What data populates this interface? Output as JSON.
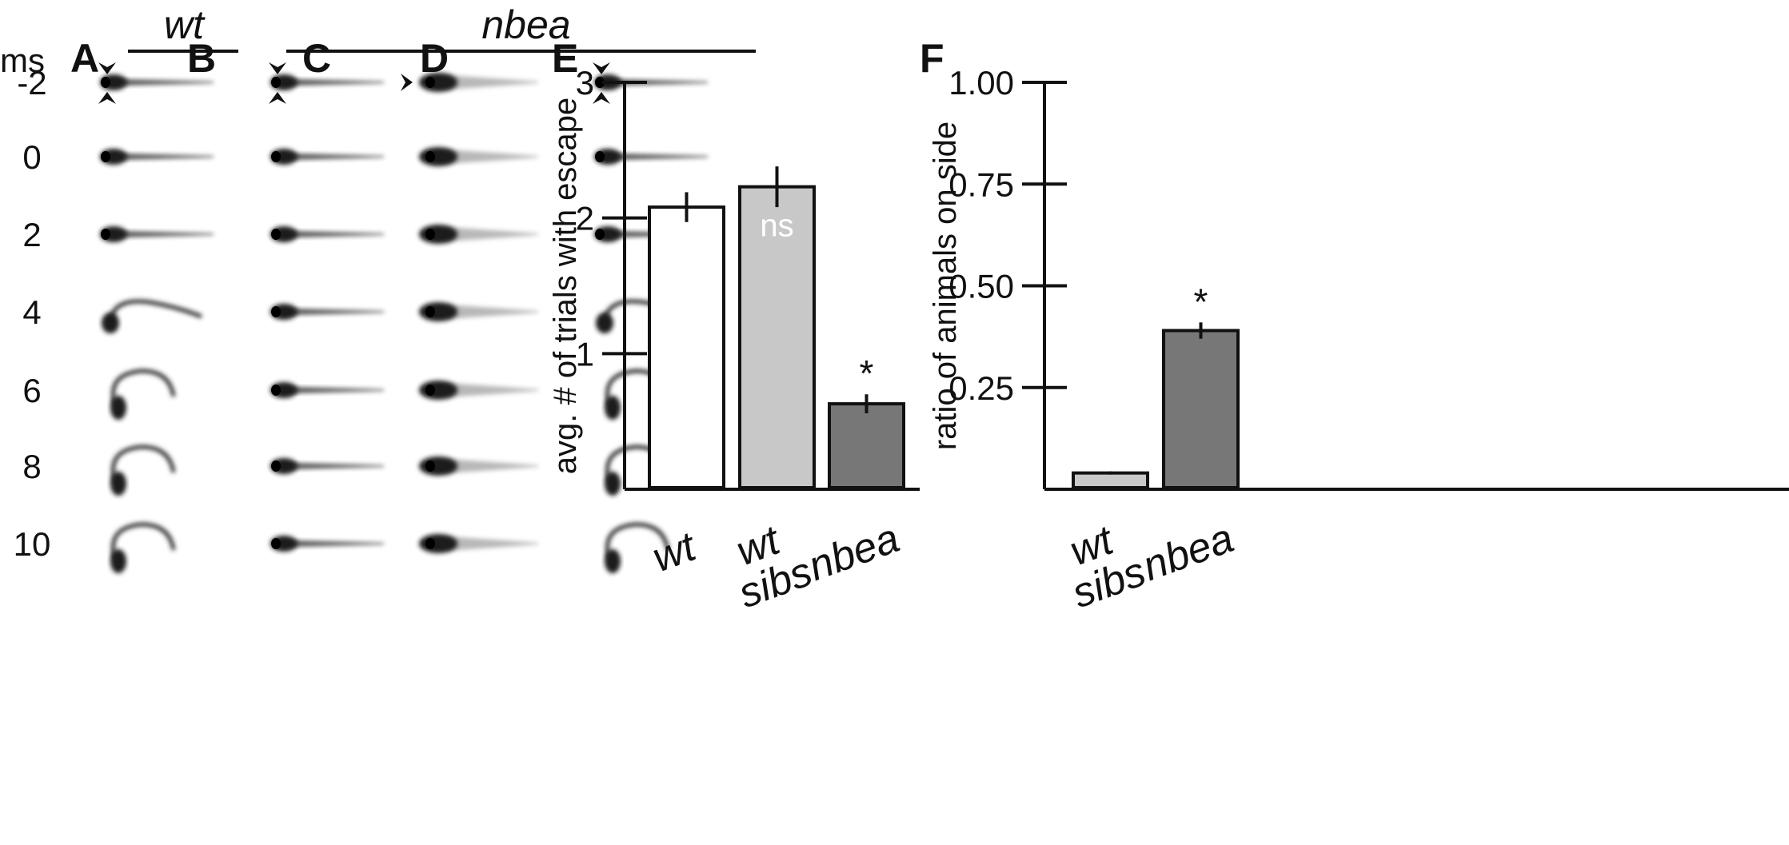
{
  "header": {
    "group_wt": "wt",
    "group_nbea": "nbea",
    "time_unit": "ms"
  },
  "times": [
    "-2",
    "0",
    "2",
    "4",
    "6",
    "8",
    "10"
  ],
  "panels": {
    "A": {
      "label": "A",
      "group": "wt",
      "fish": [
        "straight",
        "straight",
        "straight",
        "bend1",
        "cbend",
        "cbend",
        "cbend"
      ],
      "arrow_mode": "top-bottom"
    },
    "B": {
      "label": "B",
      "group": "nbea",
      "fish": [
        "straight",
        "straight",
        "straight",
        "straight",
        "straight",
        "straight",
        "straight"
      ],
      "arrow_mode": "top-bottom"
    },
    "C": {
      "label": "C",
      "group": "nbea",
      "fish": [
        "thick",
        "thick",
        "thick",
        "thick",
        "thick",
        "thick",
        "thick"
      ],
      "arrow_mode": "left"
    },
    "D": {
      "label": "D",
      "group": "nbea",
      "fish": [
        "straight",
        "straight",
        "straight",
        "bend1",
        "cbend",
        "cbend",
        "cbend"
      ],
      "arrow_mode": "top-bottom"
    }
  },
  "chart_data": [
    {
      "panel": "E",
      "type": "bar",
      "categories": [
        "wt",
        "wt sibs",
        "nbea"
      ],
      "category_lines": [
        [
          "wt"
        ],
        [
          "wt",
          "sibs"
        ],
        [
          "nbea"
        ]
      ],
      "values": [
        2.08,
        2.23,
        0.63
      ],
      "errors": [
        0.11,
        0.15,
        0.07
      ],
      "bar_colors": [
        "#ffffff",
        "#c8c8c8",
        "#777777"
      ],
      "annotations": [
        "",
        "ns",
        "*"
      ],
      "ylabel": "avg. # of trials with escape",
      "ylim": [
        0,
        3
      ],
      "yticks": [
        1,
        2,
        3
      ],
      "ytick_labels": [
        "1",
        "2",
        "3"
      ]
    },
    {
      "panel": "F",
      "type": "bar",
      "categories": [
        "wt sibs",
        "nbea"
      ],
      "category_lines": [
        [
          "wt",
          "sibs"
        ],
        [
          "nbea"
        ]
      ],
      "values": [
        0.04,
        0.39
      ],
      "errors": [
        0.004,
        0.02
      ],
      "bar_colors": [
        "#c8c8c8",
        "#777777"
      ],
      "annotations": [
        "",
        "*"
      ],
      "ylabel": "ratio of animals on side",
      "ylim": [
        0,
        1.0
      ],
      "yticks": [
        0.25,
        0.5,
        0.75,
        1.0
      ],
      "ytick_labels": [
        "0.25",
        "0.50",
        "0.75",
        "1.00"
      ]
    }
  ]
}
